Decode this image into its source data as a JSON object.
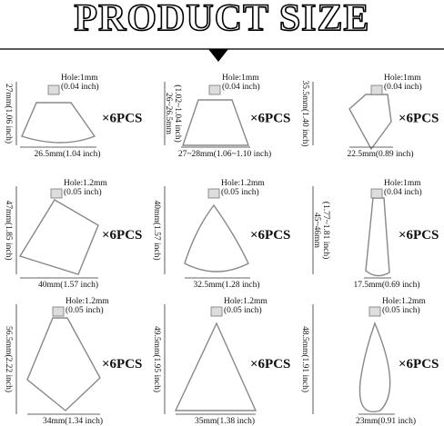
{
  "header": {
    "title": "PRODUCT SIZE"
  },
  "items": [
    {
      "height": [
        "27mm(1.06 inch)"
      ],
      "hole": [
        "Hole:1mm",
        "(0.04 inch)"
      ],
      "quantity": "×6PCS",
      "width": "26.5mm(1.04 inch)"
    },
    {
      "height": [
        "26~26.5mm",
        "(1.02~1.04 inch)"
      ],
      "hole": [
        "Hole:1mm",
        "(0.04 inch)"
      ],
      "quantity": "×6PCS",
      "width": "27~28mm(1.06~1.10 inch)"
    },
    {
      "height": [
        "35.5mm(1.40 inch)"
      ],
      "hole": [
        "Hole:1mm",
        "(0.04 inch)"
      ],
      "quantity": "×6PCS",
      "width": "22.5mm(0.89 inch)"
    },
    {
      "height": [
        "47mm(1.85 inch)"
      ],
      "hole": [
        "Hole:1.2mm",
        "(0.05 inch)"
      ],
      "quantity": "×6PCS",
      "width": "40mm(1.57 inch)"
    },
    {
      "height": [
        "40mm(1.57 inch)"
      ],
      "hole": [
        "Hole:1.2mm",
        "(0.05 inch)"
      ],
      "quantity": "×6PCS",
      "width": "32.5mm(1.28 inch)"
    },
    {
      "height": [
        "45~46mm",
        "(1.77~1.81 inch)"
      ],
      "hole": [
        "Hole:1mm",
        "(0.04 inch)"
      ],
      "quantity": "×6PCS",
      "width": "17.5mm(0.69 inch)"
    },
    {
      "height": [
        "56.5mm(2.22 inch)"
      ],
      "hole": [
        "Hole:1.2mm",
        "(0.05 inch)"
      ],
      "quantity": "×6PCS",
      "width": "34mm(1.34 inch)"
    },
    {
      "height": [
        "49.5mm(1.95 inch)"
      ],
      "hole": [
        "Hole:1.2mm",
        "(0.05 inch)"
      ],
      "quantity": "×6PCS",
      "width": "35mm(1.38 inch)"
    },
    {
      "height": [
        "48.5mm(1.91 inch)"
      ],
      "hole": [
        "Hole:1.2mm",
        "(0.05 inch)"
      ],
      "quantity": "×6PCS",
      "width": "23mm(0.91 inch)"
    }
  ]
}
